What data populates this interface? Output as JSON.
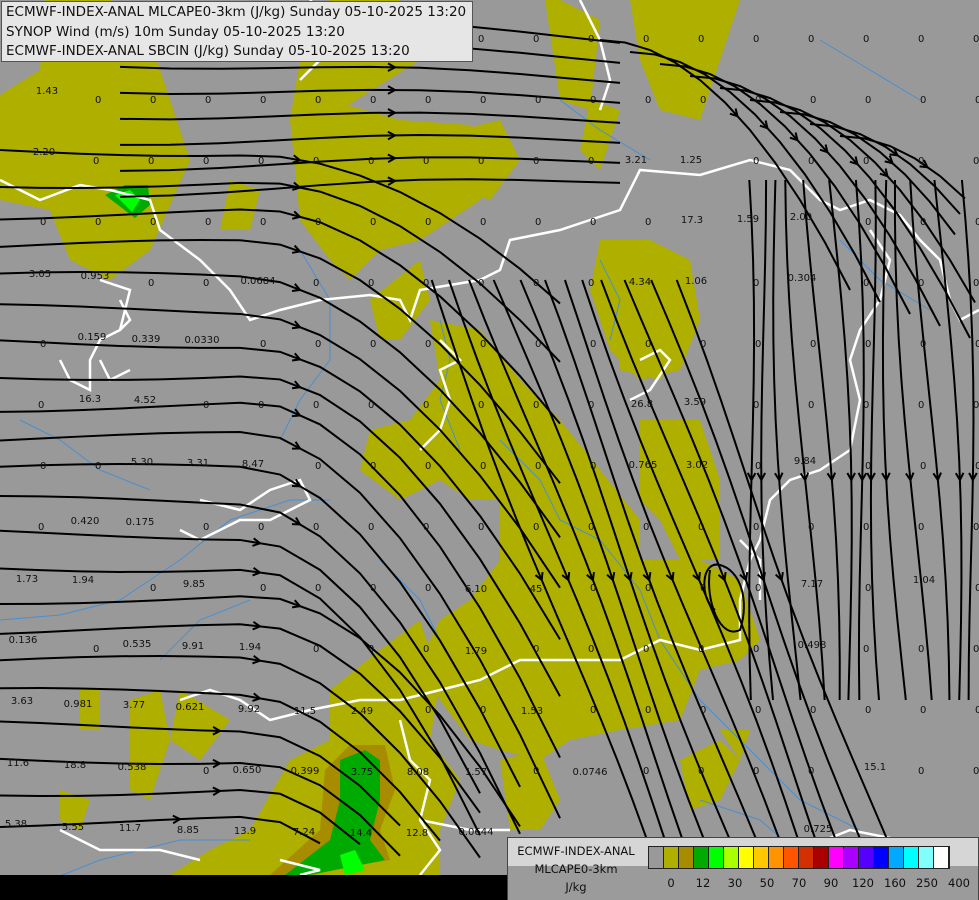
{
  "header": {
    "lines": [
      "ECMWF-INDEX-ANAL MLCAPE0-3km (J/kg) Sunday 05-10-2025 13:20",
      "SYNOP Wind (m/s) 10m Sunday 05-10-2025 13:20",
      "ECMWF-INDEX-ANAL SBCIN (J/kg) Sunday 05-10-2025 13:20"
    ]
  },
  "legend": {
    "title": "ECMWF-INDEX-ANAL",
    "variable": "MLCAPE0-3km",
    "unit": "J/kg",
    "colors": [
      "#999999",
      "#afaf00",
      "#a88c00",
      "#00aa00",
      "#00ff00",
      "#aaff00",
      "#ffff00",
      "#ffc800",
      "#ff9400",
      "#ff5500",
      "#d42f00",
      "#aa0000",
      "#ff00ff",
      "#aa00ff",
      "#5500ff",
      "#0000ff",
      "#00aaff",
      "#00ffff",
      "#80ffff",
      "#ffffff"
    ],
    "ticks": [
      "0",
      "12",
      "30",
      "50",
      "70",
      "90",
      "120",
      "160",
      "250",
      "400"
    ]
  },
  "map": {
    "background_color": "#999999",
    "cape_low_color": "#afaf00",
    "cape_mid_color": "#a88c00",
    "cape_high_color": "#00aa00",
    "cape_top_color": "#00ff00",
    "border_color": "#ffffff",
    "river_color": "#4a8fd0",
    "streamline_color": "#000000",
    "default_sbcin_value": "0",
    "sbcin_values": [
      "1.43",
      "2.20",
      "3.05",
      "0.953",
      "0.159",
      "0.339",
      "0.0330",
      "0.0684",
      "16.3",
      "4.52",
      "5.30",
      "3.31",
      "8.47",
      "0.420",
      "0.175",
      "1.73",
      "1.94",
      "9.85",
      "0.136",
      "0.535",
      "9.91",
      "1.94",
      "3.63",
      "0.981",
      "3.77",
      "0.621",
      "9.92",
      "11.5",
      "2.49",
      "11.6",
      "18.8",
      "0.538",
      "0.650",
      "0.399",
      "3.75",
      "8.08",
      "5.38",
      "5.55",
      "11.7",
      "8.85",
      "13.9",
      "7.24",
      "14.4",
      "12.8",
      "0.0644",
      "1.57",
      "1.53",
      "1.79",
      "6.10",
      "45",
      "0.0746",
      "0.765",
      "3.02",
      "26.8",
      "3.59",
      "4.34",
      "1.06",
      "0.304",
      "3.21",
      "1.25",
      "17.3",
      "1.59",
      "2.00",
      "7.17",
      "0.498",
      "1.04",
      "15.1",
      "0.725",
      "9.84"
    ]
  }
}
